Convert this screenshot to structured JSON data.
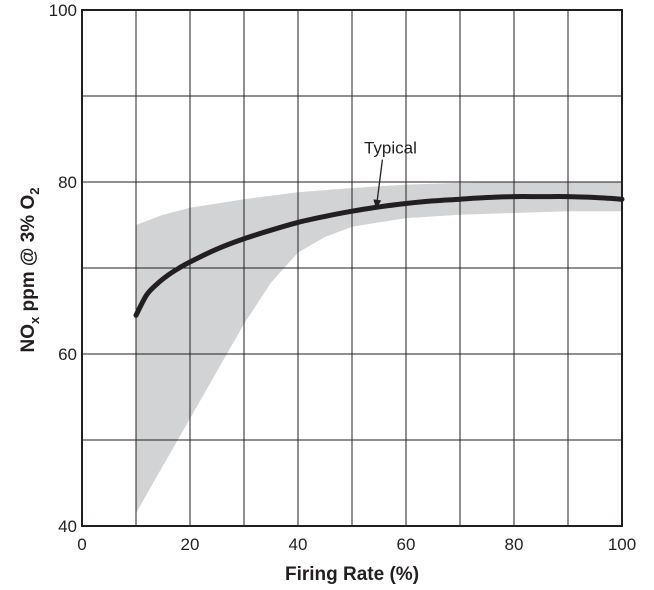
{
  "chart_data": {
    "type": "line",
    "title": "",
    "xlabel": "Firing Rate (%)",
    "ylabel": {
      "base": "NO",
      "base_sub": "x",
      "middle": " ppm @ 3% O",
      "end_sub": "2"
    },
    "xlim": [
      0,
      100
    ],
    "ylim": [
      40,
      100
    ],
    "x_ticks": [
      0,
      20,
      40,
      60,
      80,
      100
    ],
    "x_tick_labels": [
      "0",
      "20",
      "40",
      "60",
      "80",
      "100"
    ],
    "x_gridlines": [
      10,
      20,
      30,
      40,
      50,
      60,
      70,
      80,
      90
    ],
    "y_ticks": [
      40,
      60,
      80,
      100
    ],
    "y_tick_labels": [
      "40",
      "60",
      "80",
      "100"
    ],
    "y_gridlines": [
      50,
      60,
      70,
      80,
      90
    ],
    "grid": true,
    "colors": {
      "curve": "#231f20",
      "band": "#d2d3d5",
      "grid": "#231f20",
      "text": "#231f20"
    },
    "band": {
      "upper": [
        [
          10,
          75.0
        ],
        [
          15,
          76.2
        ],
        [
          20,
          77.0
        ],
        [
          30,
          78.0
        ],
        [
          40,
          78.8
        ],
        [
          50,
          79.3
        ],
        [
          60,
          79.7
        ],
        [
          70,
          79.9
        ],
        [
          80,
          80.0
        ],
        [
          90,
          80.0
        ],
        [
          100,
          80.0
        ]
      ],
      "lower": [
        [
          10,
          41.5
        ],
        [
          15,
          47.0
        ],
        [
          20,
          52.5
        ],
        [
          25,
          58.0
        ],
        [
          30,
          63.5
        ],
        [
          35,
          68.3
        ],
        [
          40,
          71.8
        ],
        [
          45,
          73.6
        ],
        [
          50,
          74.8
        ],
        [
          60,
          75.8
        ],
        [
          70,
          76.2
        ],
        [
          80,
          76.4
        ],
        [
          90,
          76.6
        ],
        [
          100,
          76.6
        ]
      ]
    },
    "series": [
      {
        "name": "Typical",
        "x": [
          10,
          12,
          14,
          16,
          18,
          20,
          25,
          30,
          35,
          40,
          45,
          50,
          55,
          60,
          65,
          70,
          75,
          80,
          85,
          90,
          95,
          100
        ],
        "y": [
          64.5,
          66.9,
          68.2,
          69.2,
          70.0,
          70.7,
          72.2,
          73.4,
          74.4,
          75.3,
          76.0,
          76.6,
          77.1,
          77.5,
          77.8,
          78.0,
          78.2,
          78.3,
          78.3,
          78.3,
          78.2,
          78.0
        ]
      }
    ],
    "annotations": [
      {
        "text": "Typical",
        "text_at": [
          56,
          83.3
        ],
        "arrow_to": [
          54.5,
          77.0
        ]
      }
    ]
  }
}
